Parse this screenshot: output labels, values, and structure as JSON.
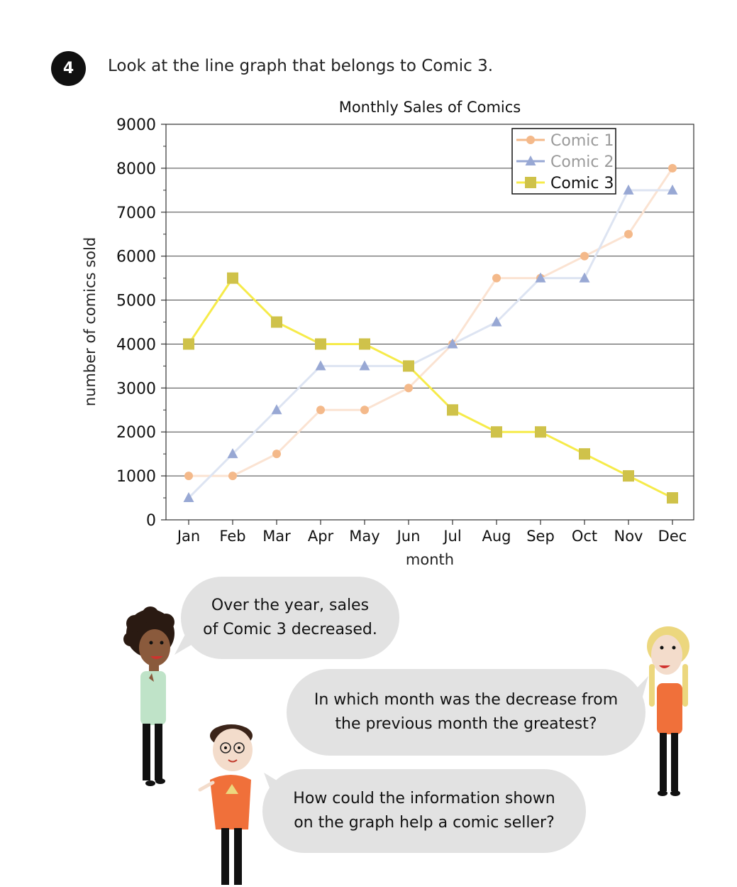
{
  "question": {
    "number": "4",
    "prompt": "Look at the line graph that belongs to Comic 3."
  },
  "chart_data": {
    "type": "line",
    "title": "Monthly Sales of Comics",
    "xlabel": "month",
    "ylabel": "number of comics sold",
    "ylim": [
      0,
      9000
    ],
    "yticks": [
      "0",
      "1000",
      "2000",
      "3000",
      "4000",
      "5000",
      "6000",
      "7000",
      "8000",
      "9000"
    ],
    "categories": [
      "Jan",
      "Feb",
      "Mar",
      "Apr",
      "May",
      "Jun",
      "Jul",
      "Aug",
      "Sep",
      "Oct",
      "Nov",
      "Dec"
    ],
    "grid": "horizontal",
    "legend_position": "top-right",
    "series": [
      {
        "name": "Comic 1",
        "values": [
          1000,
          1000,
          1500,
          2500,
          2500,
          3000,
          4000,
          5500,
          5500,
          6000,
          6500,
          8000
        ],
        "color": "#f4b98a",
        "line_color": "#fbe3d2",
        "marker": "circle",
        "muted": true
      },
      {
        "name": "Comic 2",
        "values": [
          500,
          1500,
          2500,
          3500,
          3500,
          3500,
          4000,
          4500,
          5500,
          5500,
          7500,
          7500
        ],
        "color": "#98a8d4",
        "line_color": "#dde4f2",
        "marker": "triangle",
        "muted": true
      },
      {
        "name": "Comic 3",
        "values": [
          4000,
          5500,
          4500,
          4000,
          4000,
          3500,
          2500,
          2000,
          2000,
          1500,
          1000,
          500
        ],
        "color": "#cfc24a",
        "line_color": "#f6eb4a",
        "marker": "square",
        "muted": false
      }
    ]
  },
  "speech": {
    "bubble1": "Over the year, sales\nof Comic 3 decreased.",
    "bubble2": "In which month was the decrease from\nthe previous month the greatest?",
    "bubble3": "How could the information shown\non the graph help a comic seller?"
  },
  "colors": {
    "bubble": "#e2e2e2",
    "shirt_orange": "#f0703a",
    "shirt_green": "#bfe3c8",
    "skin_dark": "#8a5a3c",
    "skin_light": "#f3dccb",
    "hair_blonde": "#ecd77e"
  }
}
